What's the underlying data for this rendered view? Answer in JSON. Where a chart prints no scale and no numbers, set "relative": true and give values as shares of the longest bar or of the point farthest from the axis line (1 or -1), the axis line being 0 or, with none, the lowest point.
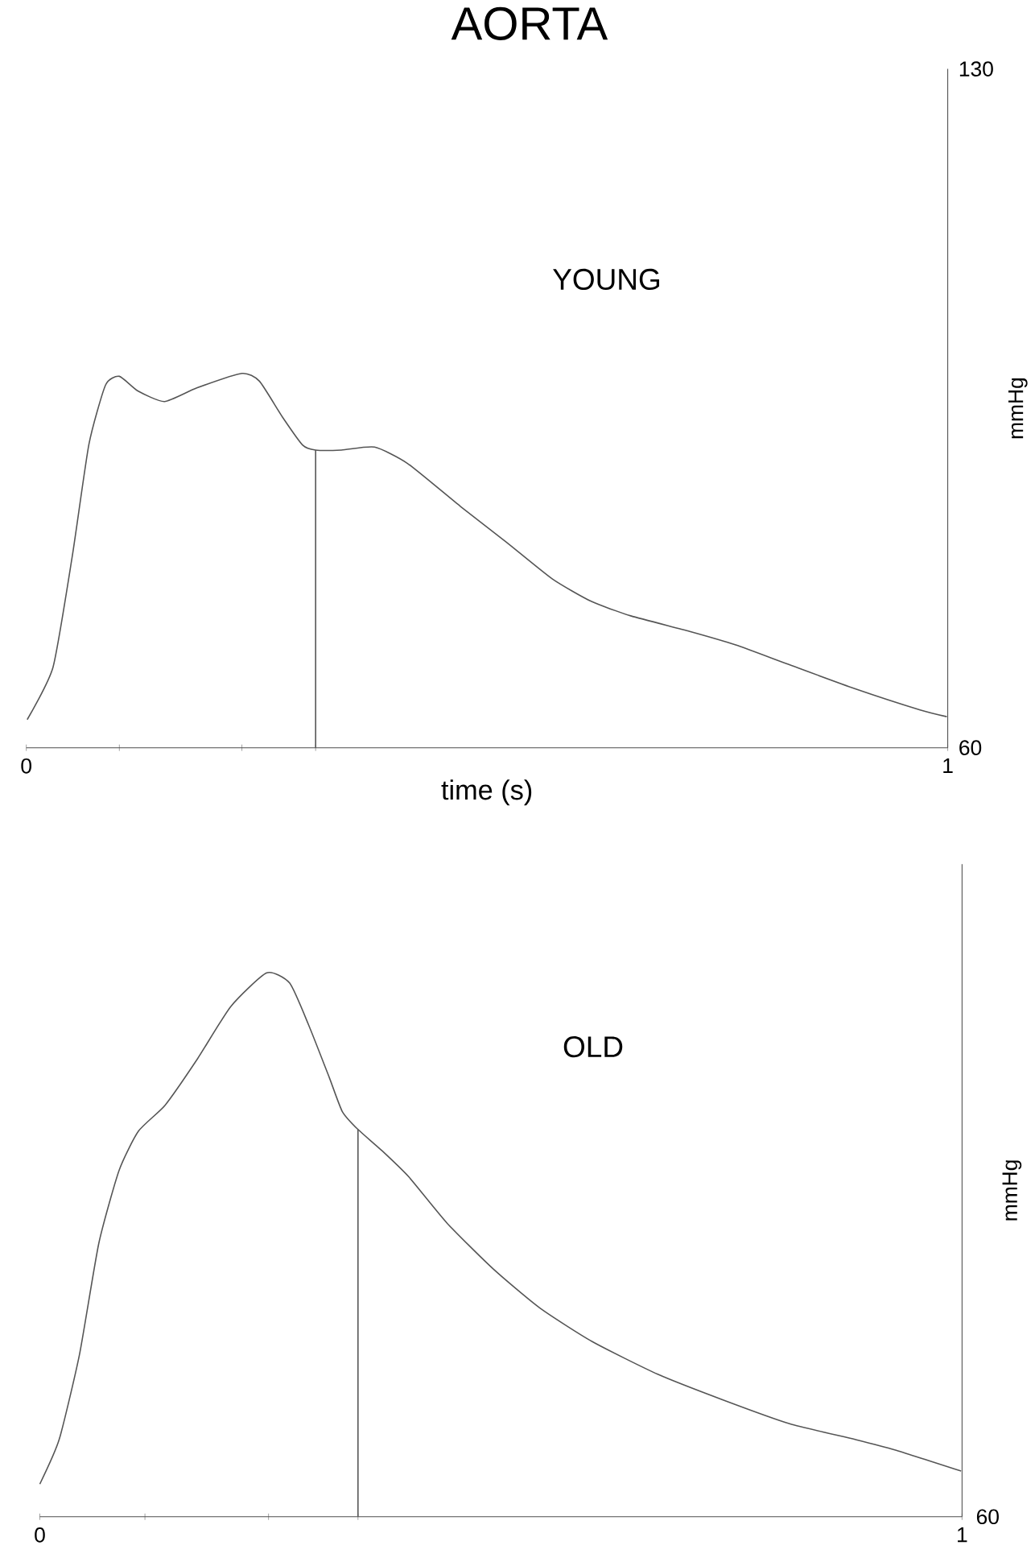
{
  "chart_data": [
    {
      "type": "line",
      "title": "AORTA",
      "xlabel": "time (s)",
      "ylabel": "mmHg",
      "xlim": [
        0,
        1
      ],
      "ylim": [
        60,
        130
      ],
      "xticks": [
        {
          "value": 0,
          "label": "0"
        },
        {
          "value": 0.101,
          "label": null
        },
        {
          "value": 0.234,
          "label": null
        },
        {
          "value": 0.314,
          "label": null
        },
        {
          "value": 1,
          "label": "1"
        }
      ],
      "yticks": [
        60,
        130
      ],
      "marker": "none",
      "series": [
        {
          "name": "YOUNG",
          "color": "#555555",
          "x": [
            0.001,
            0.029,
            0.05,
            0.068,
            0.086,
            0.101,
            0.121,
            0.15,
            0.185,
            0.234,
            0.253,
            0.278,
            0.3,
            0.314,
            0.342,
            0.378,
            0.414,
            0.471,
            0.521,
            0.571,
            0.613,
            0.656,
            0.72,
            0.77,
            0.827,
            0.899,
            0.97,
            0.999
          ],
          "values": [
            62.9,
            68.3,
            79.8,
            91.3,
            97.4,
            98.3,
            96.8,
            95.7,
            97.1,
            98.6,
            97.8,
            94.1,
            91.2,
            90.7,
            90.7,
            91.0,
            89.3,
            84.9,
            81.2,
            77.4,
            75.1,
            73.6,
            72.0,
            70.6,
            68.6,
            66.1,
            63.9,
            63.2
          ]
        },
        {
          "color": "#555555",
          "x": [
            0.314,
            0.314
          ],
          "values": [
            60,
            90.7
          ]
        }
      ]
    },
    {
      "type": "line",
      "ylabel": "mmHg",
      "xlim": [
        0,
        1
      ],
      "relative": true,
      "annotations": [
        "60"
      ],
      "xticks": [
        {
          "value": 0,
          "label": "0"
        },
        {
          "value": 0.114,
          "label": null
        },
        {
          "value": 0.248,
          "label": null
        },
        {
          "value": 0.345,
          "label": null
        },
        {
          "value": 1,
          "label": "1"
        }
      ],
      "marker": "none",
      "series": [
        {
          "name": "OLD",
          "color": "#555555",
          "x": [
            0,
            0.021,
            0.043,
            0.064,
            0.086,
            0.107,
            0.136,
            0.171,
            0.207,
            0.246,
            0.271,
            0.292,
            0.314,
            0.328,
            0.345,
            0.371,
            0.4,
            0.442,
            0.492,
            0.542,
            0.599,
            0.67,
            0.742,
            0.813,
            0.884,
            0.927,
            0.999
          ],
          "values": [
            0.06,
            0.142,
            0.298,
            0.503,
            0.637,
            0.709,
            0.757,
            0.842,
            0.938,
            1,
            0.981,
            0.902,
            0.807,
            0.745,
            0.712,
            0.673,
            0.625,
            0.539,
            0.455,
            0.384,
            0.322,
            0.262,
            0.214,
            0.171,
            0.142,
            0.123,
            0.084
          ]
        },
        {
          "color": "#555555",
          "x": [
            0.345,
            0.345
          ],
          "values": [
            0,
            0.712
          ]
        }
      ]
    }
  ]
}
